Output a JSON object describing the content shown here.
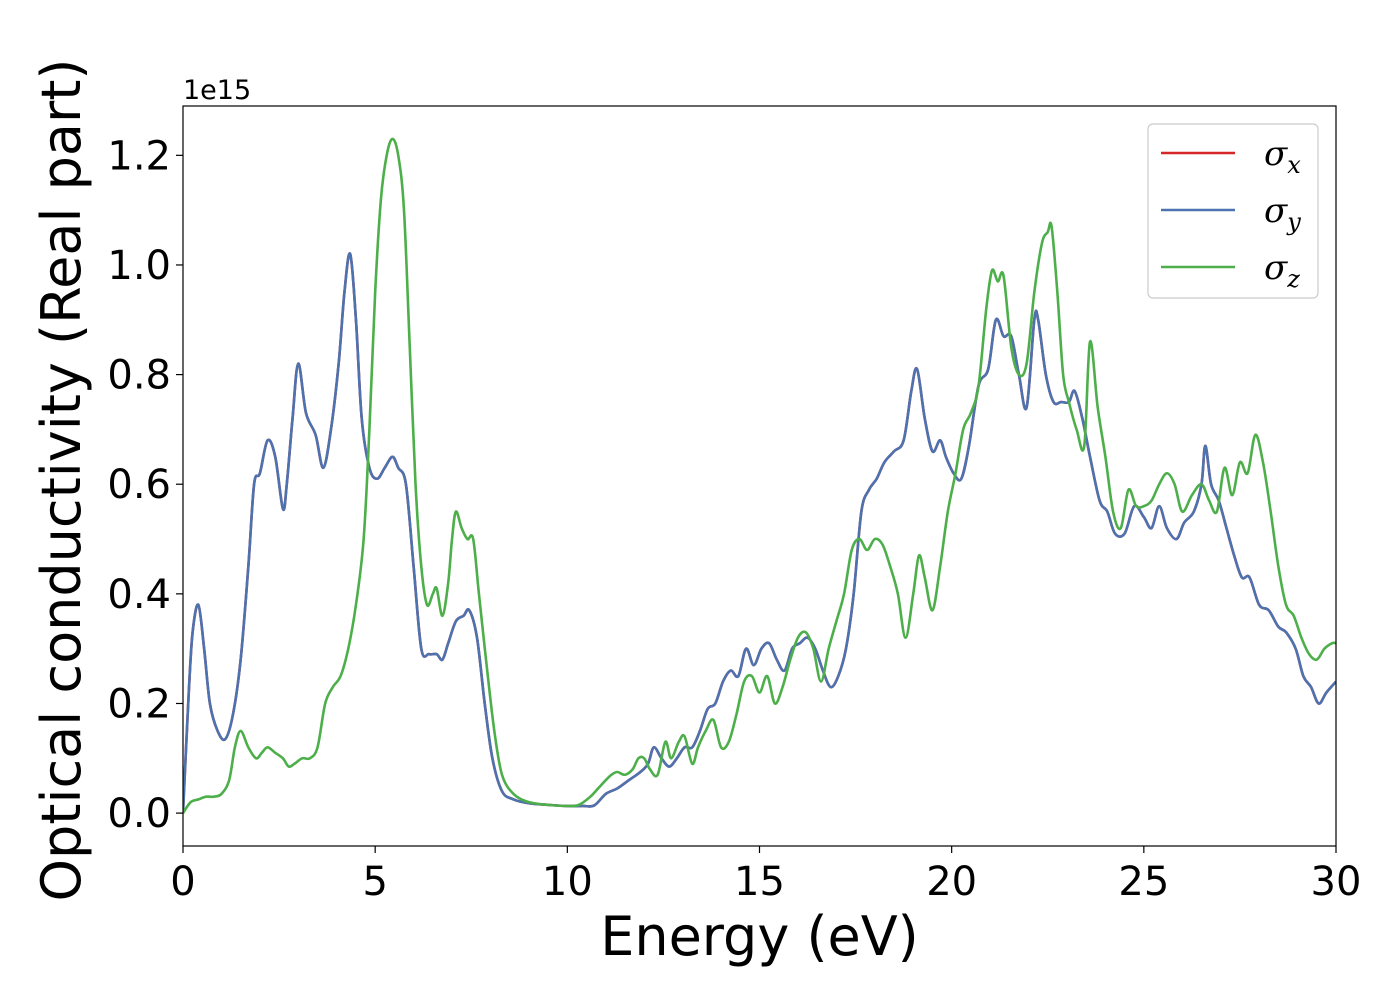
{
  "chart_data": {
    "type": "line",
    "title": "",
    "xlabel": "Energy (eV)",
    "ylabel": "Optical conductivity (Real part)",
    "y_offset_label": "1e15",
    "y_scale_factor": 1000000000000000.0,
    "xlim": [
      0,
      30
    ],
    "ylim": [
      -0.06,
      1.29
    ],
    "x_ticks": [
      0,
      5,
      10,
      15,
      20,
      25,
      30
    ],
    "x_tick_labels": [
      "0",
      "5",
      "10",
      "15",
      "20",
      "25",
      "30"
    ],
    "y_ticks": [
      0.0,
      0.2,
      0.4,
      0.6,
      0.8,
      1.0,
      1.2
    ],
    "y_tick_labels": [
      "0.0",
      "0.2",
      "0.4",
      "0.6",
      "0.8",
      "1.0",
      "1.2"
    ],
    "grid": false,
    "legend_position": "top-right",
    "series": [
      {
        "name": "σx",
        "symbol": "σ",
        "subscript": "x",
        "color": "#d62728",
        "x": [
          0,
          0.15,
          0.25,
          0.4,
          0.55,
          0.7,
          0.9,
          1.1,
          1.3,
          1.5,
          1.7,
          1.85,
          2.0,
          2.2,
          2.4,
          2.6,
          2.7,
          2.85,
          3.0,
          3.2,
          3.45,
          3.65,
          3.85,
          4.05,
          4.2,
          4.35,
          4.5,
          4.65,
          4.85,
          5.05,
          5.25,
          5.45,
          5.6,
          5.8,
          6.0,
          6.2,
          6.4,
          6.6,
          6.75,
          6.9,
          7.1,
          7.3,
          7.45,
          7.65,
          7.85,
          8.05,
          8.3,
          8.6,
          9.0,
          9.5,
          10.0,
          10.4,
          10.7,
          11.0,
          11.3,
          11.6,
          11.9,
          12.1,
          12.25,
          12.45,
          12.65,
          12.85,
          13.05,
          13.25,
          13.45,
          13.65,
          13.85,
          14.05,
          14.25,
          14.45,
          14.65,
          14.85,
          15.05,
          15.25,
          15.45,
          15.65,
          15.85,
          16.05,
          16.25,
          16.45,
          16.65,
          16.85,
          17.05,
          17.25,
          17.45,
          17.65,
          17.85,
          18.05,
          18.25,
          18.5,
          18.75,
          18.95,
          19.1,
          19.3,
          19.5,
          19.7,
          19.85,
          20.05,
          20.25,
          20.45,
          20.7,
          20.95,
          21.15,
          21.35,
          21.55,
          21.75,
          21.95,
          22.15,
          22.25,
          22.45,
          22.65,
          22.85,
          23.05,
          23.2,
          23.4,
          23.6,
          23.85,
          24.05,
          24.25,
          24.5,
          24.75,
          25.0,
          25.2,
          25.4,
          25.6,
          25.85,
          26.05,
          26.3,
          26.5,
          26.6,
          26.75,
          26.95,
          27.15,
          27.35,
          27.55,
          27.75,
          28.0,
          28.25,
          28.5,
          28.7,
          28.95,
          29.15,
          29.35,
          29.55,
          29.75,
          30.0
        ],
        "y": [
          0.0,
          0.22,
          0.33,
          0.38,
          0.3,
          0.2,
          0.15,
          0.135,
          0.18,
          0.28,
          0.45,
          0.6,
          0.62,
          0.68,
          0.65,
          0.555,
          0.6,
          0.72,
          0.82,
          0.73,
          0.69,
          0.63,
          0.7,
          0.82,
          0.95,
          1.02,
          0.9,
          0.72,
          0.63,
          0.61,
          0.63,
          0.65,
          0.63,
          0.6,
          0.45,
          0.3,
          0.29,
          0.29,
          0.28,
          0.31,
          0.35,
          0.36,
          0.37,
          0.32,
          0.2,
          0.1,
          0.04,
          0.025,
          0.018,
          0.015,
          0.013,
          0.013,
          0.014,
          0.035,
          0.045,
          0.06,
          0.075,
          0.09,
          0.12,
          0.1,
          0.085,
          0.1,
          0.12,
          0.12,
          0.15,
          0.19,
          0.2,
          0.24,
          0.26,
          0.25,
          0.3,
          0.27,
          0.3,
          0.31,
          0.28,
          0.26,
          0.3,
          0.31,
          0.32,
          0.3,
          0.26,
          0.23,
          0.25,
          0.3,
          0.4,
          0.55,
          0.59,
          0.61,
          0.64,
          0.66,
          0.68,
          0.77,
          0.81,
          0.72,
          0.66,
          0.68,
          0.65,
          0.62,
          0.61,
          0.67,
          0.78,
          0.81,
          0.9,
          0.87,
          0.87,
          0.8,
          0.74,
          0.9,
          0.9,
          0.8,
          0.75,
          0.75,
          0.75,
          0.77,
          0.72,
          0.65,
          0.57,
          0.55,
          0.51,
          0.51,
          0.56,
          0.54,
          0.52,
          0.56,
          0.52,
          0.5,
          0.53,
          0.55,
          0.6,
          0.67,
          0.6,
          0.57,
          0.52,
          0.47,
          0.43,
          0.43,
          0.38,
          0.37,
          0.34,
          0.33,
          0.3,
          0.25,
          0.23,
          0.2,
          0.22,
          0.24
        ],
        "hidden_under": "σy"
      },
      {
        "name": "σy",
        "symbol": "σ",
        "subscript": "y",
        "color": "#4c72b0",
        "x": [
          0,
          0.15,
          0.25,
          0.4,
          0.55,
          0.7,
          0.9,
          1.1,
          1.3,
          1.5,
          1.7,
          1.85,
          2.0,
          2.2,
          2.4,
          2.6,
          2.7,
          2.85,
          3.0,
          3.2,
          3.45,
          3.65,
          3.85,
          4.05,
          4.2,
          4.35,
          4.5,
          4.65,
          4.85,
          5.05,
          5.25,
          5.45,
          5.6,
          5.8,
          6.0,
          6.2,
          6.4,
          6.6,
          6.75,
          6.9,
          7.1,
          7.3,
          7.45,
          7.65,
          7.85,
          8.05,
          8.3,
          8.6,
          9.0,
          9.5,
          10.0,
          10.4,
          10.7,
          11.0,
          11.3,
          11.6,
          11.9,
          12.1,
          12.25,
          12.45,
          12.65,
          12.85,
          13.05,
          13.25,
          13.45,
          13.65,
          13.85,
          14.05,
          14.25,
          14.45,
          14.65,
          14.85,
          15.05,
          15.25,
          15.45,
          15.65,
          15.85,
          16.05,
          16.25,
          16.45,
          16.65,
          16.85,
          17.05,
          17.25,
          17.45,
          17.65,
          17.85,
          18.05,
          18.25,
          18.5,
          18.75,
          18.95,
          19.1,
          19.3,
          19.5,
          19.7,
          19.85,
          20.05,
          20.25,
          20.45,
          20.7,
          20.95,
          21.15,
          21.35,
          21.55,
          21.75,
          21.95,
          22.15,
          22.25,
          22.45,
          22.65,
          22.85,
          23.05,
          23.2,
          23.4,
          23.6,
          23.85,
          24.05,
          24.25,
          24.5,
          24.75,
          25.0,
          25.2,
          25.4,
          25.6,
          25.85,
          26.05,
          26.3,
          26.5,
          26.6,
          26.75,
          26.95,
          27.15,
          27.35,
          27.55,
          27.75,
          28.0,
          28.25,
          28.5,
          28.7,
          28.95,
          29.15,
          29.35,
          29.55,
          29.75,
          30.0
        ],
        "y": [
          0.0,
          0.22,
          0.33,
          0.38,
          0.3,
          0.2,
          0.15,
          0.135,
          0.18,
          0.28,
          0.45,
          0.6,
          0.62,
          0.68,
          0.65,
          0.555,
          0.6,
          0.72,
          0.82,
          0.73,
          0.69,
          0.63,
          0.7,
          0.82,
          0.95,
          1.02,
          0.9,
          0.72,
          0.63,
          0.61,
          0.63,
          0.65,
          0.63,
          0.6,
          0.45,
          0.3,
          0.29,
          0.29,
          0.28,
          0.31,
          0.35,
          0.36,
          0.37,
          0.32,
          0.2,
          0.1,
          0.04,
          0.025,
          0.018,
          0.015,
          0.013,
          0.013,
          0.014,
          0.035,
          0.045,
          0.06,
          0.075,
          0.09,
          0.12,
          0.1,
          0.085,
          0.1,
          0.12,
          0.12,
          0.15,
          0.19,
          0.2,
          0.24,
          0.26,
          0.25,
          0.3,
          0.27,
          0.3,
          0.31,
          0.28,
          0.26,
          0.3,
          0.31,
          0.32,
          0.3,
          0.26,
          0.23,
          0.25,
          0.3,
          0.4,
          0.55,
          0.59,
          0.61,
          0.64,
          0.66,
          0.68,
          0.77,
          0.81,
          0.72,
          0.66,
          0.68,
          0.65,
          0.62,
          0.61,
          0.67,
          0.78,
          0.81,
          0.9,
          0.87,
          0.87,
          0.8,
          0.74,
          0.9,
          0.9,
          0.8,
          0.75,
          0.75,
          0.75,
          0.77,
          0.72,
          0.65,
          0.57,
          0.55,
          0.51,
          0.51,
          0.56,
          0.54,
          0.52,
          0.56,
          0.52,
          0.5,
          0.53,
          0.55,
          0.6,
          0.67,
          0.6,
          0.57,
          0.52,
          0.47,
          0.43,
          0.43,
          0.38,
          0.37,
          0.34,
          0.33,
          0.3,
          0.25,
          0.23,
          0.2,
          0.22,
          0.24
        ]
      },
      {
        "name": "σz",
        "symbol": "σ",
        "subscript": "z",
        "color": "#4daf4a",
        "x": [
          0,
          0.2,
          0.4,
          0.6,
          0.8,
          1.0,
          1.2,
          1.35,
          1.5,
          1.7,
          1.9,
          2.05,
          2.2,
          2.4,
          2.6,
          2.75,
          2.9,
          3.1,
          3.3,
          3.5,
          3.7,
          3.9,
          4.1,
          4.3,
          4.5,
          4.7,
          4.85,
          5.0,
          5.15,
          5.3,
          5.45,
          5.6,
          5.75,
          5.9,
          6.05,
          6.2,
          6.35,
          6.5,
          6.6,
          6.75,
          6.9,
          7.0,
          7.1,
          7.25,
          7.4,
          7.55,
          7.7,
          7.9,
          8.1,
          8.3,
          8.6,
          9.0,
          9.5,
          10.0,
          10.3,
          10.6,
          10.8,
          11.0,
          11.15,
          11.3,
          11.5,
          11.7,
          11.85,
          12.0,
          12.15,
          12.35,
          12.55,
          12.7,
          12.9,
          13.05,
          13.25,
          13.4,
          13.6,
          13.8,
          14.0,
          14.2,
          14.4,
          14.6,
          14.8,
          15.0,
          15.2,
          15.4,
          15.6,
          15.8,
          16.0,
          16.2,
          16.4,
          16.6,
          16.8,
          17.0,
          17.2,
          17.4,
          17.6,
          17.8,
          18.0,
          18.2,
          18.4,
          18.6,
          18.8,
          19.0,
          19.15,
          19.3,
          19.5,
          19.7,
          19.9,
          20.1,
          20.3,
          20.5,
          20.7,
          20.9,
          21.05,
          21.2,
          21.35,
          21.55,
          21.75,
          21.95,
          22.15,
          22.35,
          22.5,
          22.6,
          22.75,
          22.9,
          23.05,
          23.25,
          23.45,
          23.6,
          23.8,
          24.0,
          24.2,
          24.4,
          24.6,
          24.8,
          25.0,
          25.2,
          25.4,
          25.6,
          25.8,
          26.0,
          26.25,
          26.5,
          26.7,
          26.9,
          27.1,
          27.3,
          27.5,
          27.7,
          27.9,
          28.1,
          28.3,
          28.5,
          28.7,
          28.9,
          29.1,
          29.3,
          29.5,
          29.7,
          29.9,
          30.0
        ],
        "y": [
          0.0,
          0.02,
          0.025,
          0.03,
          0.03,
          0.035,
          0.06,
          0.12,
          0.15,
          0.12,
          0.1,
          0.11,
          0.12,
          0.11,
          0.1,
          0.085,
          0.09,
          0.1,
          0.1,
          0.12,
          0.2,
          0.23,
          0.25,
          0.3,
          0.38,
          0.5,
          0.7,
          0.95,
          1.12,
          1.2,
          1.23,
          1.2,
          1.1,
          0.85,
          0.6,
          0.45,
          0.38,
          0.4,
          0.41,
          0.36,
          0.42,
          0.5,
          0.55,
          0.52,
          0.5,
          0.5,
          0.4,
          0.27,
          0.15,
          0.07,
          0.035,
          0.02,
          0.015,
          0.013,
          0.015,
          0.03,
          0.045,
          0.06,
          0.07,
          0.075,
          0.07,
          0.08,
          0.1,
          0.1,
          0.08,
          0.07,
          0.13,
          0.1,
          0.13,
          0.14,
          0.09,
          0.12,
          0.15,
          0.17,
          0.12,
          0.13,
          0.18,
          0.24,
          0.25,
          0.22,
          0.25,
          0.2,
          0.23,
          0.28,
          0.32,
          0.33,
          0.3,
          0.24,
          0.3,
          0.35,
          0.4,
          0.48,
          0.5,
          0.48,
          0.5,
          0.49,
          0.45,
          0.4,
          0.32,
          0.4,
          0.47,
          0.43,
          0.37,
          0.45,
          0.55,
          0.62,
          0.7,
          0.73,
          0.78,
          0.92,
          0.99,
          0.97,
          0.98,
          0.85,
          0.8,
          0.82,
          0.95,
          1.04,
          1.06,
          1.07,
          0.95,
          0.8,
          0.75,
          0.7,
          0.67,
          0.86,
          0.74,
          0.65,
          0.55,
          0.52,
          0.59,
          0.56,
          0.56,
          0.57,
          0.6,
          0.62,
          0.6,
          0.55,
          0.58,
          0.6,
          0.57,
          0.55,
          0.63,
          0.58,
          0.64,
          0.62,
          0.69,
          0.64,
          0.55,
          0.45,
          0.38,
          0.36,
          0.32,
          0.29,
          0.28,
          0.3,
          0.31,
          0.31
        ]
      }
    ]
  }
}
